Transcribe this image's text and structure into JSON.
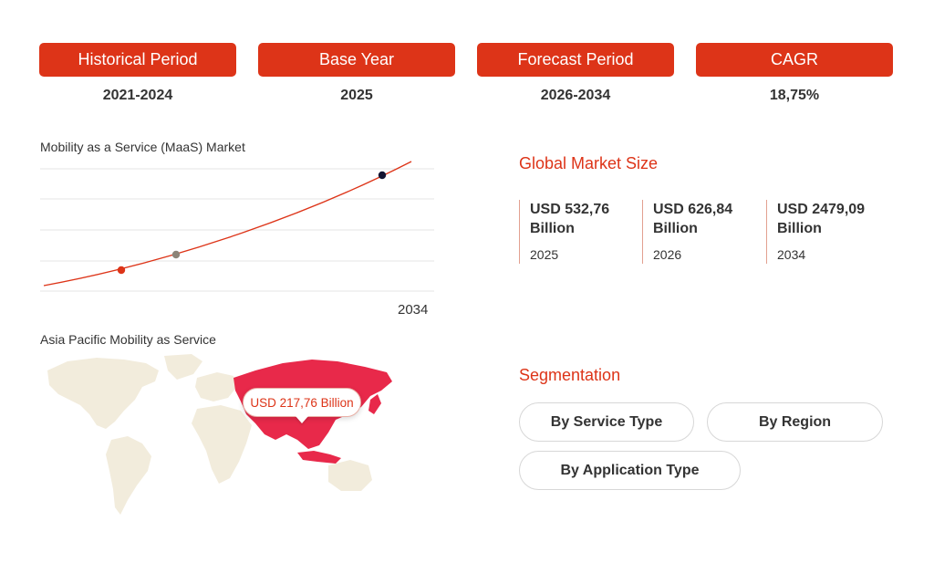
{
  "stats": [
    {
      "label": "Historical Period",
      "value": "2021-2024"
    },
    {
      "label": "Base Year",
      "value": "2025"
    },
    {
      "label": "Forecast Period",
      "value": "2026-2034"
    },
    {
      "label": "CAGR",
      "value": "18,75%"
    }
  ],
  "chart": {
    "title": "Mobility as a Service (MaaS) Market",
    "end_year_label": "2034",
    "line_color": "#dd3418",
    "marker_colors": [
      "#dd3418",
      "#8c8478",
      "#141432"
    ]
  },
  "map": {
    "title": "Asia Pacific Mobility as Service",
    "callout": "USD 217,76 Billion",
    "land_color": "#f2ecdc",
    "region_color": "#e8294a"
  },
  "global_size": {
    "title": "Global Market Size",
    "items": [
      {
        "amount": "USD 532,76 Billion",
        "year": "2025"
      },
      {
        "amount": "USD 626,84 Billion",
        "year": "2026"
      },
      {
        "amount": "USD 2479,09 Billion",
        "year": "2034"
      }
    ]
  },
  "segmentation": {
    "title": "Segmentation",
    "buttons": [
      "By Service Type",
      "By Region",
      "By Application Type"
    ]
  },
  "accent_color": "#dd3418"
}
